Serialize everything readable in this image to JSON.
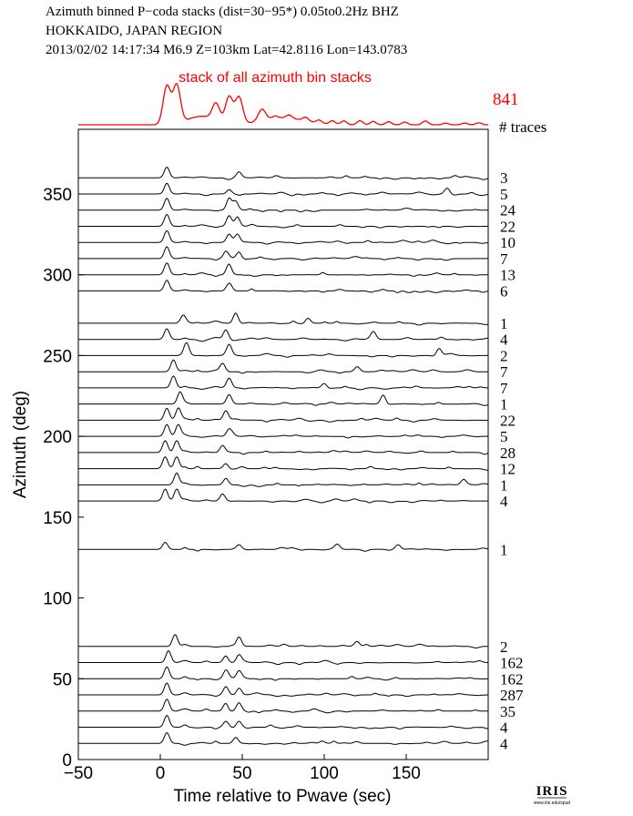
{
  "header": {
    "line1": "Azimuth binned P−coda stacks (dist=30−95*)  0.05to0.2Hz  BHZ",
    "line2": "HOKKAIDO, JAPAN REGION",
    "line3": "2013/02/02  14:17:34  M6.9  Z=103km Lat=42.8116 Lon=143.0783"
  },
  "logo": {
    "text": "IRIS",
    "subtext": "www.iris.edu/spud"
  },
  "colors": {
    "stack": "#ff0000",
    "trace": "#000000"
  },
  "chart_data": {
    "type": "line",
    "title": "stack of all azimuth bin stacks",
    "total_traces": "841",
    "traces_label": "# traces",
    "xlabel": "Time relative to Pwave (sec)",
    "ylabel": "Azimuth (deg)",
    "xlim": [
      -50,
      200
    ],
    "ylim": [
      0,
      390
    ],
    "xticks": [
      -50,
      0,
      50,
      100,
      150
    ],
    "yticks": [
      0,
      50,
      100,
      150,
      200,
      250,
      300,
      350
    ],
    "grid": false,
    "summary_stack": {
      "name": "stack of all azimuth bin stacks",
      "peaks": [
        [
          4,
          1.0
        ],
        [
          10,
          1.0
        ],
        [
          34,
          0.45
        ],
        [
          42,
          0.7
        ],
        [
          48,
          0.7
        ],
        [
          62,
          0.3
        ]
      ]
    },
    "series": [
      {
        "azimuth": 360,
        "traces": "3",
        "peaks": [
          [
            4,
            0.9
          ],
          [
            48,
            0.5
          ]
        ]
      },
      {
        "azimuth": 350,
        "traces": "5",
        "peaks": [
          [
            4,
            0.9
          ],
          [
            42,
            0.4
          ],
          [
            175,
            0.5
          ]
        ]
      },
      {
        "azimuth": 340,
        "traces": "24",
        "peaks": [
          [
            4,
            1.0
          ],
          [
            42,
            1.0
          ],
          [
            46,
            0.8
          ]
        ]
      },
      {
        "azimuth": 330,
        "traces": "22",
        "peaks": [
          [
            4,
            1.0
          ],
          [
            42,
            0.9
          ],
          [
            47,
            0.8
          ]
        ]
      },
      {
        "azimuth": 320,
        "traces": "10",
        "peaks": [
          [
            4,
            1.0
          ],
          [
            42,
            0.8
          ],
          [
            47,
            0.7
          ]
        ]
      },
      {
        "azimuth": 310,
        "traces": "7",
        "peaks": [
          [
            4,
            1.0
          ],
          [
            40,
            0.6
          ],
          [
            48,
            0.6
          ]
        ]
      },
      {
        "azimuth": 300,
        "traces": "13",
        "peaks": [
          [
            4,
            1.0
          ],
          [
            42,
            0.8
          ]
        ]
      },
      {
        "azimuth": 290,
        "traces": "6",
        "peaks": [
          [
            4,
            0.9
          ],
          [
            42,
            0.8
          ]
        ]
      },
      {
        "azimuth": 270,
        "traces": "1",
        "peaks": [
          [
            14,
            0.6
          ],
          [
            46,
            1.0
          ],
          [
            90,
            0.5
          ]
        ]
      },
      {
        "azimuth": 260,
        "traces": "4",
        "peaks": [
          [
            4,
            0.9
          ],
          [
            40,
            0.8
          ],
          [
            130,
            0.6
          ]
        ]
      },
      {
        "azimuth": 250,
        "traces": "2",
        "peaks": [
          [
            16,
            1.0
          ],
          [
            42,
            0.8
          ],
          [
            170,
            0.6
          ]
        ]
      },
      {
        "azimuth": 240,
        "traces": "7",
        "peaks": [
          [
            8,
            1.0
          ],
          [
            38,
            0.7
          ],
          [
            120,
            0.4
          ]
        ]
      },
      {
        "azimuth": 230,
        "traces": "7",
        "peaks": [
          [
            8,
            1.0
          ],
          [
            42,
            0.8
          ],
          [
            100,
            0.4
          ]
        ]
      },
      {
        "azimuth": 220,
        "traces": "1",
        "peaks": [
          [
            12,
            1.0
          ],
          [
            42,
            0.7
          ],
          [
            136,
            0.8
          ]
        ]
      },
      {
        "azimuth": 210,
        "traces": "22",
        "peaks": [
          [
            4,
            1.0
          ],
          [
            11,
            1.0
          ],
          [
            40,
            0.8
          ]
        ]
      },
      {
        "azimuth": 200,
        "traces": "5",
        "peaks": [
          [
            4,
            1.0
          ],
          [
            11,
            1.0
          ],
          [
            42,
            0.6
          ]
        ]
      },
      {
        "azimuth": 190,
        "traces": "28",
        "peaks": [
          [
            3,
            1.0
          ],
          [
            10,
            1.0
          ],
          [
            38,
            0.6
          ]
        ]
      },
      {
        "azimuth": 180,
        "traces": "12",
        "peaks": [
          [
            3,
            1.0
          ],
          [
            10,
            1.0
          ],
          [
            40,
            0.5
          ]
        ]
      },
      {
        "azimuth": 170,
        "traces": "1",
        "peaks": [
          [
            10,
            1.0
          ],
          [
            40,
            0.6
          ],
          [
            185,
            0.4
          ]
        ]
      },
      {
        "azimuth": 160,
        "traces": "4",
        "peaks": [
          [
            3,
            1.0
          ],
          [
            10,
            1.0
          ],
          [
            38,
            0.6
          ]
        ]
      },
      {
        "azimuth": 130,
        "traces": "1",
        "peaks": [
          [
            3,
            0.6
          ],
          [
            48,
            0.4
          ],
          [
            108,
            0.35
          ],
          [
            145,
            0.4
          ]
        ]
      },
      {
        "azimuth": 70,
        "traces": "2",
        "peaks": [
          [
            9,
            1.0
          ],
          [
            48,
            0.8
          ],
          [
            120,
            0.4
          ]
        ]
      },
      {
        "azimuth": 60,
        "traces": "162",
        "peaks": [
          [
            5,
            1.0
          ],
          [
            40,
            0.6
          ],
          [
            48,
            0.6
          ]
        ]
      },
      {
        "azimuth": 50,
        "traces": "162",
        "peaks": [
          [
            4,
            1.0
          ],
          [
            40,
            0.6
          ],
          [
            48,
            0.6
          ]
        ]
      },
      {
        "azimuth": 40,
        "traces": "287",
        "peaks": [
          [
            4,
            1.0
          ],
          [
            40,
            0.7
          ],
          [
            48,
            0.7
          ]
        ]
      },
      {
        "azimuth": 30,
        "traces": "35",
        "peaks": [
          [
            4,
            1.0
          ],
          [
            40,
            0.7
          ],
          [
            48,
            0.7
          ]
        ]
      },
      {
        "azimuth": 20,
        "traces": "4",
        "peaks": [
          [
            4,
            1.0
          ],
          [
            40,
            0.5
          ],
          [
            48,
            0.5
          ]
        ]
      },
      {
        "azimuth": 10,
        "traces": "4",
        "peaks": [
          [
            4,
            0.9
          ],
          [
            46,
            0.5
          ]
        ]
      }
    ]
  }
}
